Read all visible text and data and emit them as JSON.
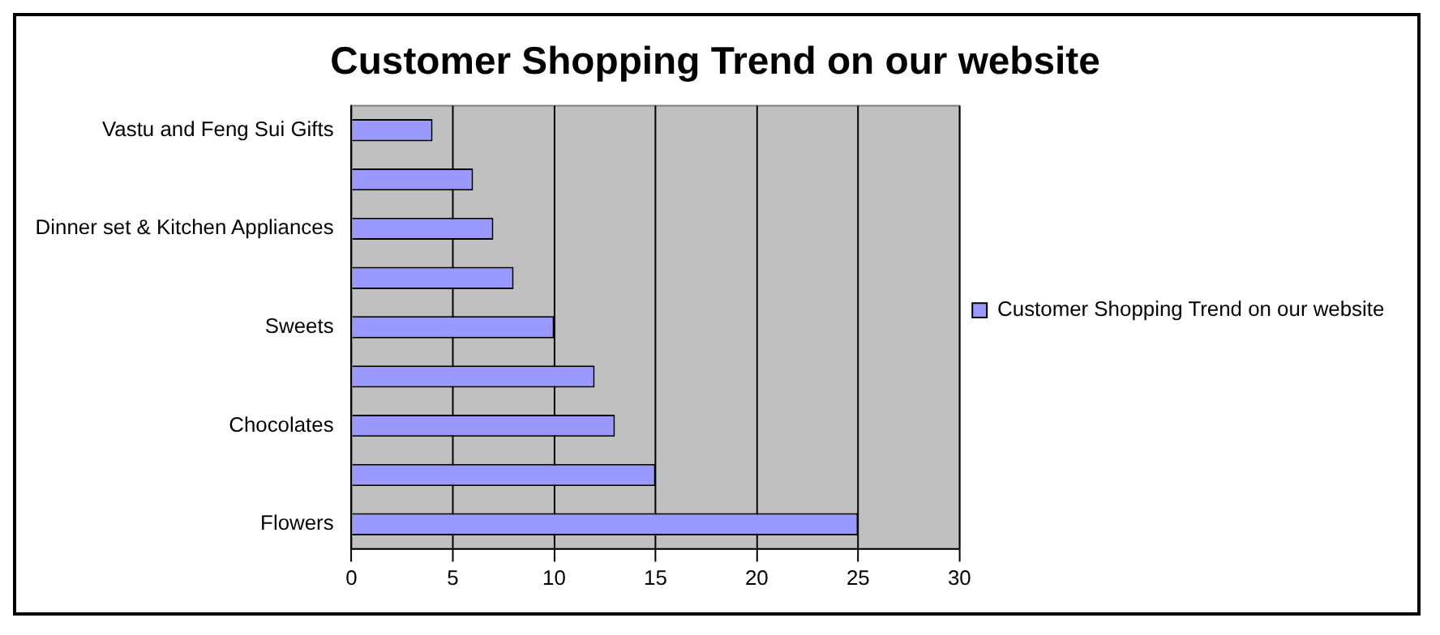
{
  "chart_data": {
    "type": "bar",
    "orientation": "horizontal",
    "title": "Customer Shopping Trend on our website",
    "categories": [
      "Vastu and Feng Sui Gifts",
      null,
      "Dinner set & Kitchen Appliances",
      null,
      "Sweets",
      null,
      "Chocolates",
      null,
      "Flowers"
    ],
    "series": [
      {
        "name": "Customer Shopping Trend on our website",
        "color": "#9999ff",
        "values": [
          4,
          6,
          7,
          8,
          10,
          12,
          13,
          15,
          25
        ]
      }
    ],
    "xlim": [
      0,
      30
    ],
    "xticks": [
      0,
      5,
      10,
      15,
      20,
      25,
      30
    ],
    "grid": "x",
    "legend": "right"
  }
}
